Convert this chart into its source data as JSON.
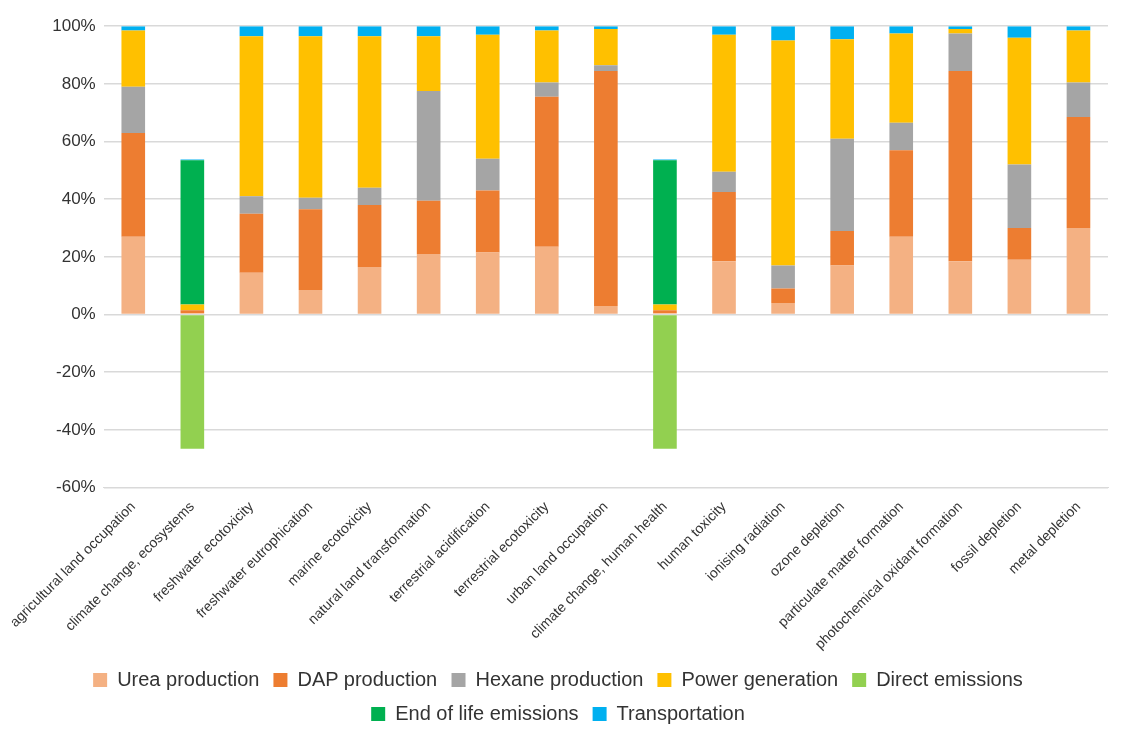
{
  "chart_data": {
    "type": "bar",
    "stacked": true,
    "grid": "y",
    "legend": "bottom",
    "categories": [
      "agricultural land occupation",
      "climate change, ecosystems",
      "freshwater ecotoxicity",
      "freshwater eutrophication",
      "marine ecotoxicity",
      "natural land transformation",
      "terrestrial acidification",
      "terrestrial ecotoxicity",
      "urban land occupation",
      "climate change, human health",
      "human toxicity",
      "ionising radiation",
      "ozone depletion",
      "particulate matter formation",
      "photochemical oxidant formation",
      "fossil depletion",
      "metal depletion"
    ],
    "series": [
      {
        "name": "Urea production",
        "color": "#f4b183",
        "values": [
          27,
          0.5,
          14.5,
          8.5,
          16.5,
          21,
          21.5,
          23.5,
          3,
          0.5,
          18.5,
          4,
          17,
          27,
          18.5,
          19,
          30
        ]
      },
      {
        "name": "DAP production",
        "color": "#ed7d31",
        "values": [
          36,
          1,
          20.5,
          28,
          21.5,
          18.5,
          21.5,
          52,
          81.5,
          1,
          24,
          5,
          12,
          30,
          66,
          11,
          38.5
        ]
      },
      {
        "name": "Hexane production",
        "color": "#a5a5a5",
        "values": [
          16,
          null,
          6,
          4,
          6,
          38,
          11,
          5,
          2,
          null,
          7,
          8,
          32,
          9.5,
          13,
          22,
          12
        ]
      },
      {
        "name": "Power generation",
        "color": "#ffc000",
        "values": [
          19.5,
          2,
          55.5,
          56,
          52.5,
          19,
          43,
          18,
          12.5,
          2,
          47.5,
          78,
          34.5,
          31,
          1.5,
          44,
          18
        ]
      },
      {
        "name": "Direct emissions",
        "color": "#92d050",
        "values": [
          null,
          -46.5,
          null,
          null,
          null,
          null,
          null,
          null,
          null,
          -46.5,
          null,
          null,
          null,
          null,
          null,
          null,
          null
        ]
      },
      {
        "name": "End of life emissions",
        "color": "#00b050",
        "values": [
          null,
          50,
          null,
          null,
          null,
          null,
          null,
          null,
          null,
          50,
          null,
          null,
          null,
          null,
          null,
          null,
          null
        ]
      },
      {
        "name": "Transportation",
        "color": "#00b0f0",
        "values": [
          1.5,
          0.3,
          3.5,
          3.5,
          3.5,
          3.5,
          3,
          1.5,
          1,
          0.3,
          3,
          5,
          4.5,
          2.5,
          1,
          4,
          1.5
        ]
      }
    ],
    "ylim": [
      -60,
      100
    ],
    "yticks": [
      {
        "value": -60,
        "label": "-60%"
      },
      {
        "value": -40,
        "label": "-40%"
      },
      {
        "value": -20,
        "label": "-20%"
      },
      {
        "value": 0,
        "label": "0%"
      },
      {
        "value": 20,
        "label": "20%"
      },
      {
        "value": 40,
        "label": "40%"
      },
      {
        "value": 60,
        "label": "60%"
      },
      {
        "value": 80,
        "label": "80%"
      },
      {
        "value": 100,
        "label": "100%"
      }
    ]
  }
}
